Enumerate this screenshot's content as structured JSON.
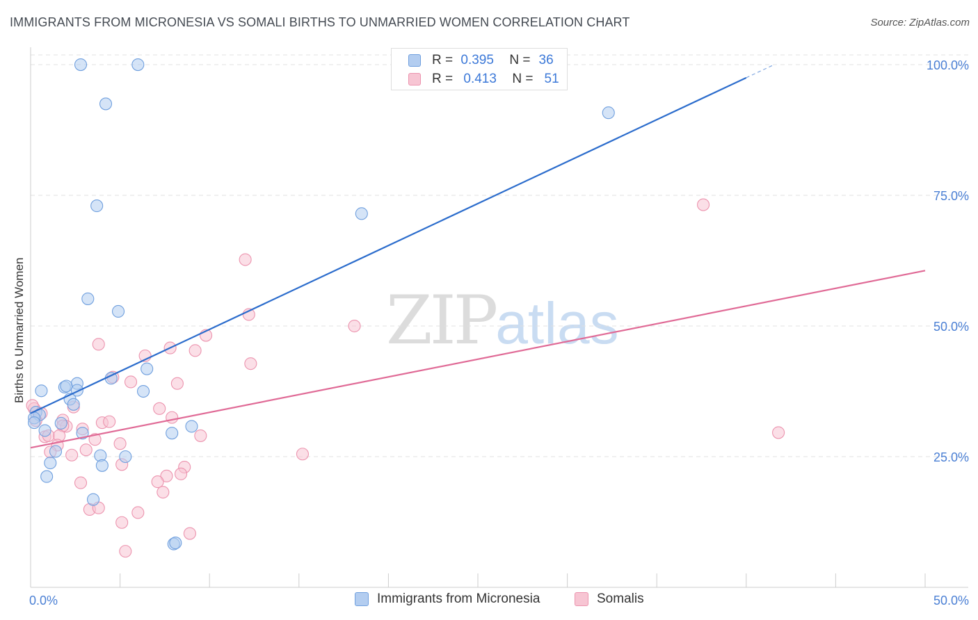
{
  "title": "IMMIGRANTS FROM MICRONESIA VS SOMALI BIRTHS TO UNMARRIED WOMEN CORRELATION CHART",
  "source": "Source: ZipAtlas.com",
  "watermark": {
    "zip": "ZIP",
    "atlas": "atlas"
  },
  "legend": {
    "rows": [
      {
        "r_label": "R =",
        "r_value": "0.395",
        "n_label": "N =",
        "n_value": "36"
      },
      {
        "r_label": "R =",
        "r_value": "0.413",
        "n_label": "N =",
        "n_value": "51"
      }
    ]
  },
  "bottom_legend": [
    "Immigrants from Micronesia",
    "Somalis"
  ],
  "colors": {
    "blue_fill": "#b3cdf0",
    "blue_stroke": "#6f9fde",
    "blue_line": "#2b6ccc",
    "pink_fill": "#f7c5d3",
    "pink_stroke": "#ec93ae",
    "pink_line": "#e06a96",
    "tick": "#4a7fd4",
    "grid": "#e0e0e0"
  },
  "chart_data": {
    "type": "scatter",
    "title": "IMMIGRANTS FROM MICRONESIA VS SOMALI BIRTHS TO UNMARRIED WOMEN CORRELATION CHART",
    "xlabel": "",
    "ylabel": "Births to Unmarried Women",
    "xlim": [
      0,
      50
    ],
    "ylim": [
      0,
      102
    ],
    "x_ticks": [
      "0.0%",
      "50.0%"
    ],
    "y_ticks": [
      {
        "value": 25,
        "label": "25.0%"
      },
      {
        "value": 50,
        "label": "50.0%"
      },
      {
        "value": 75,
        "label": "75.0%"
      },
      {
        "value": 100,
        "label": "100.0%"
      }
    ],
    "series": [
      {
        "name": "Immigrants from Micronesia",
        "R": 0.395,
        "N": 36,
        "trend": {
          "x0": 0,
          "y0": 33.3,
          "x1": 40,
          "y1": 97.5,
          "dash_to_x": 41.5
        },
        "points": [
          [
            2.8,
            100.0
          ],
          [
            6.0,
            100.0
          ],
          [
            4.2,
            92.5
          ],
          [
            32.3,
            90.8
          ],
          [
            3.7,
            73.0
          ],
          [
            18.5,
            71.5
          ],
          [
            3.2,
            55.2
          ],
          [
            4.9,
            52.8
          ],
          [
            6.5,
            41.8
          ],
          [
            4.5,
            40.0
          ],
          [
            2.6,
            39.0
          ],
          [
            1.9,
            38.3
          ],
          [
            2.0,
            38.5
          ],
          [
            0.6,
            37.6
          ],
          [
            2.6,
            37.7
          ],
          [
            6.3,
            37.5
          ],
          [
            2.2,
            36.0
          ],
          [
            2.4,
            35.0
          ],
          [
            0.3,
            33.5
          ],
          [
            0.5,
            33.0
          ],
          [
            0.2,
            32.4
          ],
          [
            0.2,
            31.5
          ],
          [
            1.7,
            31.4
          ],
          [
            0.8,
            30.0
          ],
          [
            9.0,
            30.8
          ],
          [
            2.9,
            29.5
          ],
          [
            7.9,
            29.5
          ],
          [
            1.4,
            26.0
          ],
          [
            3.9,
            25.2
          ],
          [
            5.3,
            25.0
          ],
          [
            1.1,
            23.8
          ],
          [
            4.0,
            23.3
          ],
          [
            0.9,
            21.2
          ],
          [
            3.5,
            16.8
          ],
          [
            8.0,
            8.3
          ],
          [
            8.1,
            8.5
          ]
        ]
      },
      {
        "name": "Somalis",
        "R": 0.413,
        "N": 51,
        "trend": {
          "x0": 0,
          "y0": 26.7,
          "x1": 50,
          "y1": 60.6
        },
        "points": [
          [
            37.6,
            73.2
          ],
          [
            12.0,
            62.7
          ],
          [
            12.2,
            52.2
          ],
          [
            18.1,
            50.0
          ],
          [
            9.8,
            48.2
          ],
          [
            3.8,
            46.5
          ],
          [
            7.8,
            45.8
          ],
          [
            9.2,
            45.3
          ],
          [
            6.4,
            44.3
          ],
          [
            12.3,
            42.8
          ],
          [
            4.6,
            40.2
          ],
          [
            5.6,
            39.3
          ],
          [
            8.2,
            39.0
          ],
          [
            0.2,
            34.2
          ],
          [
            2.4,
            34.5
          ],
          [
            7.2,
            34.2
          ],
          [
            0.6,
            33.3
          ],
          [
            1.8,
            32.0
          ],
          [
            7.9,
            32.5
          ],
          [
            4.0,
            31.5
          ],
          [
            4.4,
            31.7
          ],
          [
            2.0,
            30.8
          ],
          [
            1.8,
            30.9
          ],
          [
            2.9,
            30.3
          ],
          [
            0.8,
            28.8
          ],
          [
            1.0,
            29.0
          ],
          [
            1.6,
            29.0
          ],
          [
            3.6,
            28.3
          ],
          [
            9.5,
            29.0
          ],
          [
            41.8,
            29.6
          ],
          [
            1.5,
            27.2
          ],
          [
            5.0,
            27.5
          ],
          [
            1.1,
            25.9
          ],
          [
            3.1,
            26.3
          ],
          [
            2.3,
            25.3
          ],
          [
            15.2,
            25.5
          ],
          [
            5.1,
            23.5
          ],
          [
            8.6,
            23.0
          ],
          [
            7.6,
            21.3
          ],
          [
            8.4,
            21.7
          ],
          [
            2.8,
            20.0
          ],
          [
            7.1,
            20.2
          ],
          [
            7.4,
            18.2
          ],
          [
            3.3,
            14.9
          ],
          [
            3.8,
            15.2
          ],
          [
            6.0,
            14.3
          ],
          [
            5.1,
            12.4
          ],
          [
            8.9,
            10.3
          ],
          [
            5.3,
            6.9
          ],
          [
            0.1,
            34.8
          ],
          [
            0.3,
            31.9
          ]
        ]
      }
    ]
  }
}
